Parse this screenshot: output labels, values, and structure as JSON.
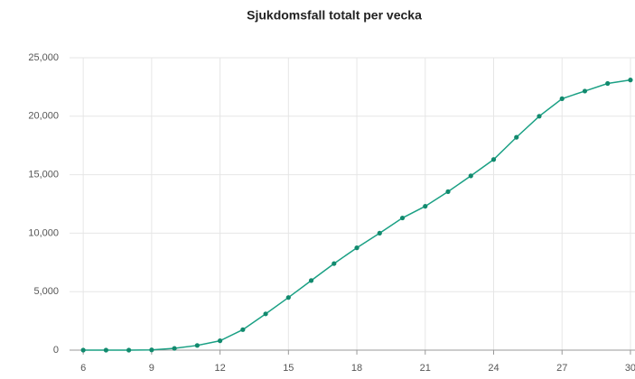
{
  "chart_data": {
    "type": "line",
    "title": "Sjukdomsfall totalt per vecka",
    "x": [
      6,
      7,
      8,
      9,
      10,
      11,
      12,
      13,
      14,
      15,
      16,
      17,
      18,
      19,
      20,
      21,
      22,
      23,
      24,
      25,
      26,
      27,
      28,
      29,
      30
    ],
    "series": [
      {
        "name": "Sjukdomsfall",
        "color": "#1aa084",
        "values": [
          0,
          0,
          0,
          20,
          150,
          400,
          800,
          1750,
          3100,
          4500,
          5950,
          7400,
          8750,
          10000,
          11300,
          12300,
          13550,
          14900,
          16300,
          18200,
          20000,
          21500,
          22150,
          22800,
          23100
        ]
      }
    ],
    "xlim": [
      5.4,
      30.2
    ],
    "xticks": [
      6,
      9,
      12,
      15,
      18,
      21,
      24,
      27,
      30
    ],
    "ylim": [
      0,
      25000
    ],
    "yticks": [
      0,
      {
        "value": 5000,
        "label": "5,000"
      },
      {
        "value": 10000,
        "label": "10,000"
      },
      {
        "value": 15000,
        "label": "15,000"
      },
      {
        "value": 20000,
        "label": "20,000"
      },
      {
        "value": 25000,
        "label": "25,000"
      }
    ],
    "grid": true
  }
}
